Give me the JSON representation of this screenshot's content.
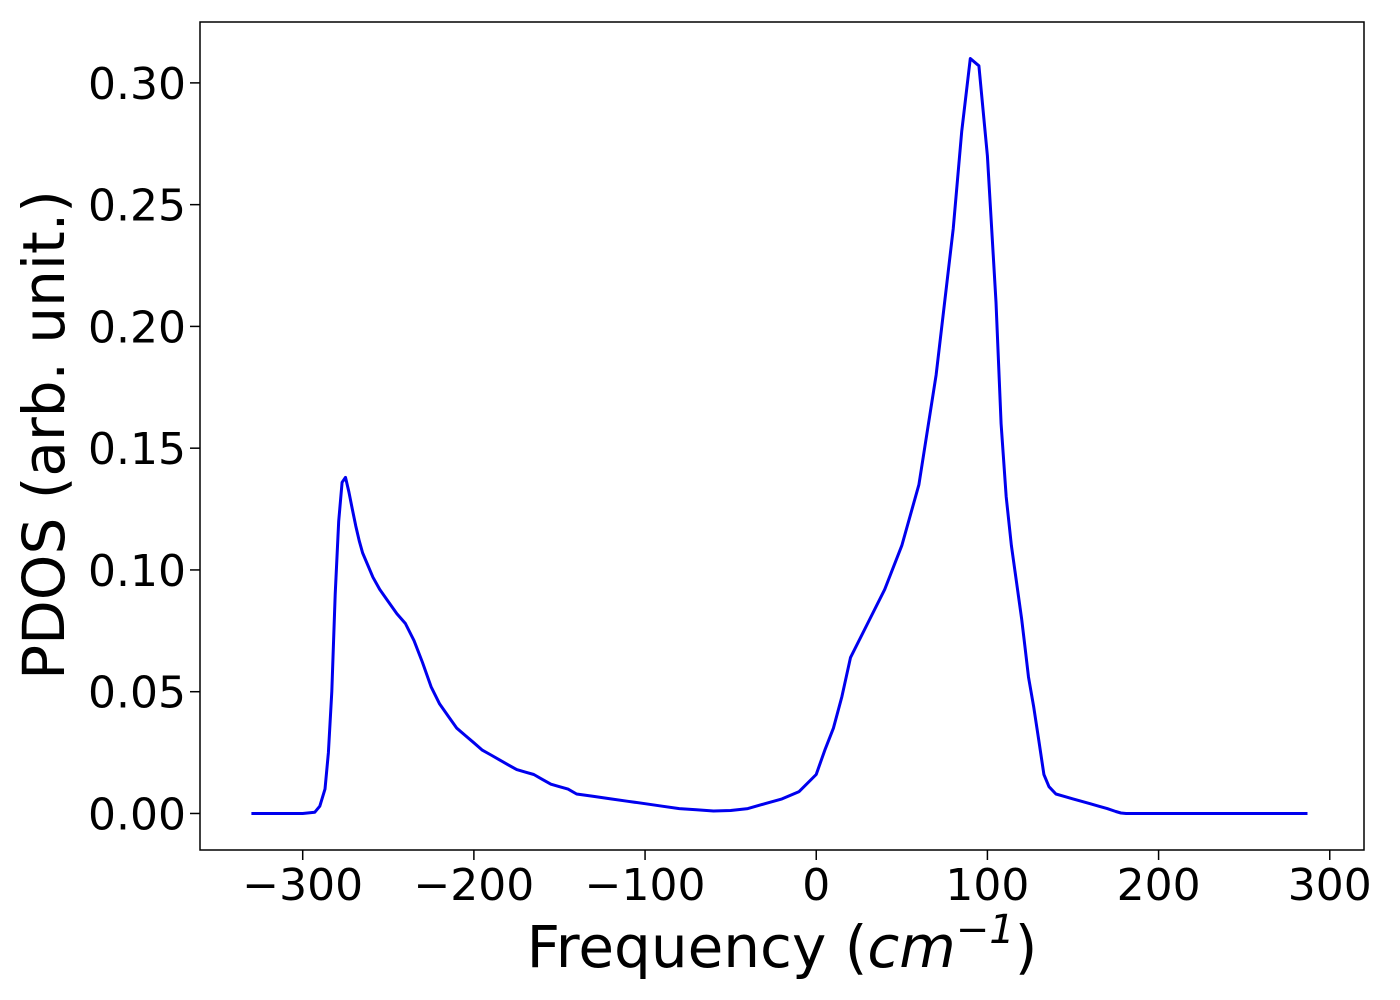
{
  "chart_data": {
    "type": "line",
    "title": "",
    "xlabel_main": "Frequency (",
    "xlabel_var": "cm",
    "xlabel_sup": "−1",
    "xlabel_end": ")",
    "ylabel": "PDOS (arb. unit.)",
    "xlim": [
      -360,
      320
    ],
    "ylim": [
      -0.015,
      0.325
    ],
    "xticks": [
      -300,
      -200,
      -100,
      0,
      100,
      200,
      300
    ],
    "xtick_labels": [
      "−300",
      "−200",
      "−100",
      "0",
      "100",
      "200",
      "300"
    ],
    "yticks": [
      0.0,
      0.05,
      0.1,
      0.15,
      0.2,
      0.25,
      0.3
    ],
    "ytick_labels": [
      "0.00",
      "0.05",
      "0.10",
      "0.15",
      "0.20",
      "0.25",
      "0.30"
    ],
    "grid": false,
    "line_color": "#0000ee",
    "series": [
      {
        "x": [
          -330,
          -300,
          -293,
          -290,
          -287,
          -285,
          -283,
          -281,
          -279,
          -277,
          -275,
          -273,
          -271,
          -269,
          -267,
          -265,
          -262,
          -259,
          -255,
          -250,
          -245,
          -240,
          -235,
          -230,
          -225,
          -220,
          -215,
          -210,
          -205,
          -200,
          -195,
          -190,
          -185,
          -180,
          -175,
          -170,
          -165,
          -160,
          -155,
          -150,
          -145,
          -140,
          -130,
          -120,
          -110,
          -100,
          -90,
          -80,
          -70,
          -60,
          -50,
          -40,
          -30,
          -20,
          -10,
          0,
          5,
          10,
          15,
          20,
          30,
          40,
          50,
          60,
          70,
          80,
          85,
          90,
          95,
          100,
          105,
          108,
          111,
          114,
          117,
          120,
          122,
          124,
          127,
          130,
          133,
          136,
          140,
          145,
          150,
          155,
          160,
          165,
          170,
          175,
          178,
          181,
          184,
          187,
          190,
          200,
          210,
          220,
          225,
          230,
          235,
          240,
          245,
          250,
          260,
          270,
          287
        ],
        "y": [
          0.0,
          0.0,
          0.0005,
          0.003,
          0.01,
          0.025,
          0.05,
          0.09,
          0.12,
          0.136,
          0.138,
          0.132,
          0.125,
          0.118,
          0.112,
          0.107,
          0.102,
          0.097,
          0.092,
          0.087,
          0.082,
          0.078,
          0.071,
          0.062,
          0.052,
          0.045,
          0.04,
          0.035,
          0.032,
          0.029,
          0.026,
          0.024,
          0.022,
          0.02,
          0.018,
          0.017,
          0.016,
          0.014,
          0.012,
          0.011,
          0.01,
          0.008,
          0.007,
          0.006,
          0.005,
          0.004,
          0.003,
          0.002,
          0.0015,
          0.001,
          0.0012,
          0.002,
          0.004,
          0.006,
          0.009,
          0.016,
          0.026,
          0.035,
          0.048,
          0.064,
          0.078,
          0.092,
          0.11,
          0.135,
          0.18,
          0.24,
          0.28,
          0.31,
          0.307,
          0.27,
          0.21,
          0.16,
          0.13,
          0.11,
          0.095,
          0.08,
          0.068,
          0.056,
          0.044,
          0.03,
          0.016,
          0.011,
          0.008,
          0.007,
          0.006,
          0.005,
          0.004,
          0.003,
          0.002,
          0.0008,
          0.0002,
          0.0,
          0.0,
          0.0,
          0.0,
          0.0,
          0.0,
          0.0,
          0.0,
          0.0,
          0.0,
          0.0,
          0.0,
          0.0,
          0.0,
          0.0,
          0.0
        ]
      }
    ]
  }
}
